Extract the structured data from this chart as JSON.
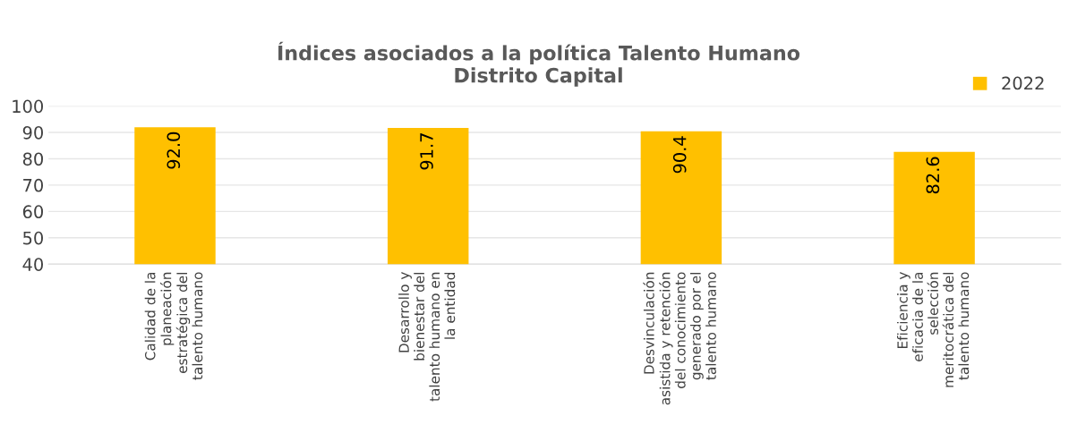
{
  "chart_data": {
    "type": "bar",
    "title": "Índices asociados a la política Talento Humano\nDistrito Capital",
    "categories": [
      "Calidad de la\nplaneación\nestratégica del\ntalento humano",
      "Desarrollo y\nbienestar del\ntalento humano en\nla entidad",
      "Desvinculación\nasistida y retención\ndel conocimiento\ngenerado por el\ntalento humano",
      "Eficiencia y\neficacia de la\nselección\nmeritocrática del\ntalento humano"
    ],
    "series": [
      {
        "name": "2022",
        "color": "#ffc000",
        "values": [
          92.0,
          91.7,
          90.4,
          82.6
        ],
        "value_labels": [
          "92.0",
          "91.7",
          "90.4",
          "82.6"
        ]
      }
    ],
    "ylim": [
      40,
      100
    ],
    "yticks": [
      40,
      50,
      60,
      70,
      80,
      90,
      100
    ],
    "grid": "y",
    "legend": "top right"
  }
}
